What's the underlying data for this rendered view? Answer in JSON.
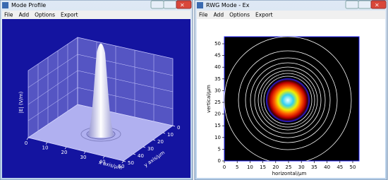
{
  "windows": [
    {
      "title": "Mode Profile",
      "menu": [
        "File",
        "Add",
        "Options",
        "Export"
      ],
      "plot": {
        "x_label": "x axis/μm",
        "y_label": "y axis/μm",
        "z_label": "|E| (V/m)",
        "xticks": [
          0,
          10,
          20,
          30,
          40,
          50
        ],
        "yticks": [
          0,
          10,
          20,
          30,
          40,
          50
        ]
      }
    },
    {
      "title": "RWG Mode - Ex",
      "menu": [
        "File",
        "Add",
        "Options",
        "Export"
      ],
      "plot": {
        "x_label": "horizontal/μm",
        "y_label": "vertical/μm",
        "xticks": [
          0,
          5,
          10,
          15,
          20,
          25,
          30,
          35,
          40,
          45,
          50
        ],
        "yticks": [
          0,
          5,
          10,
          15,
          20,
          25,
          30,
          35,
          40,
          45,
          50
        ]
      }
    }
  ]
}
